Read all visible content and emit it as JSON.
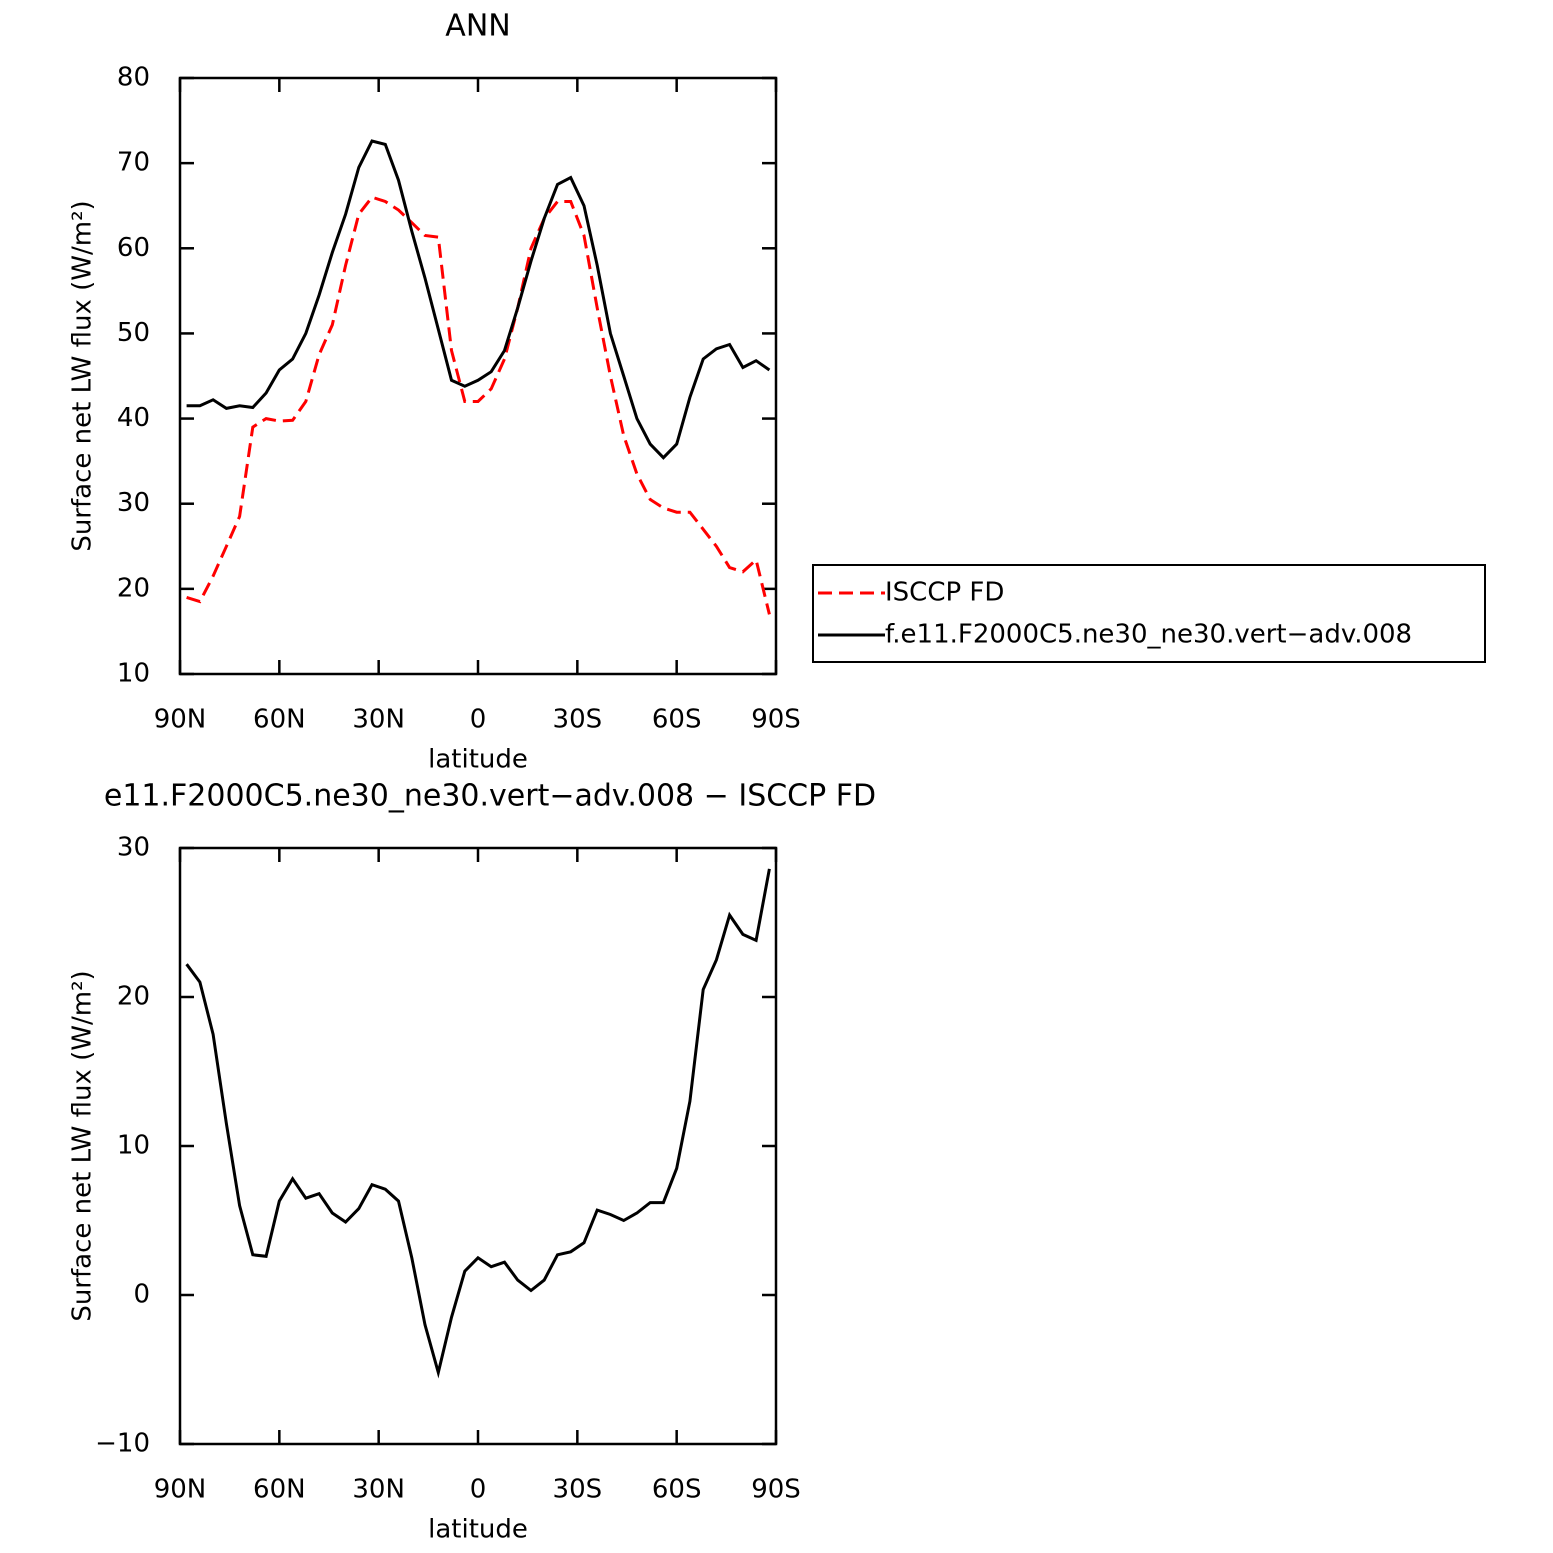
{
  "chart_data": [
    {
      "type": "line",
      "title": "ANN",
      "xlabel": "latitude",
      "ylabel": "Surface net LW flux (W/m²)",
      "x": [
        88,
        84,
        80,
        76,
        72,
        68,
        64,
        60,
        56,
        52,
        48,
        44,
        40,
        36,
        32,
        28,
        24,
        20,
        16,
        12,
        8,
        4,
        0,
        -4,
        -8,
        -12,
        -16,
        -20,
        -24,
        -28,
        -32,
        -36,
        -40,
        -44,
        -48,
        -52,
        -56,
        -60,
        -64,
        -68,
        -72,
        -76,
        -80,
        -84,
        -88
      ],
      "xlim": [
        90,
        -90
      ],
      "xticks": [
        {
          "value": 90,
          "label": "90N"
        },
        {
          "value": 60,
          "label": "60N"
        },
        {
          "value": 30,
          "label": "30N"
        },
        0,
        {
          "value": -30,
          "label": "30S"
        },
        {
          "value": -60,
          "label": "60S"
        },
        {
          "value": -90,
          "label": "90S"
        }
      ],
      "ylim": [
        10,
        80
      ],
      "yticks": [
        10,
        20,
        30,
        40,
        50,
        60,
        70,
        80
      ],
      "legend": "outside right",
      "series": [
        {
          "name": "ISCCP FD",
          "color": "#ff0000",
          "linestyle": "dashed",
          "values": [
            19,
            18.5,
            21.5,
            25,
            28.5,
            39,
            40,
            39.7,
            39.8,
            42,
            47.5,
            51,
            58,
            64,
            66,
            65.5,
            64.5,
            63,
            61.5,
            61.3,
            48,
            42,
            42,
            43.5,
            47,
            53,
            60,
            63.5,
            65.5,
            65.5,
            61.5,
            53,
            45,
            38,
            33.5,
            30.5,
            29.5,
            29,
            29,
            27,
            25,
            22.5,
            22,
            23.4,
            17
          ]
        },
        {
          "name": "f.e11.F2000C5.ne30_ne30.vert−adv.008",
          "color": "#000000",
          "linestyle": "solid",
          "values": [
            41.5,
            41.5,
            42.2,
            41.2,
            41.5,
            41.3,
            43,
            45.7,
            47,
            50,
            54.5,
            59.5,
            64,
            69.5,
            72.6,
            72.2,
            68,
            62,
            56.5,
            50.5,
            44.5,
            43.8,
            44.5,
            45.5,
            48,
            53,
            58.5,
            63.5,
            67.5,
            68.3,
            65,
            58,
            50,
            45,
            40,
            37,
            35.4,
            37,
            42.5,
            47,
            48.2,
            48.7,
            46,
            46.8,
            45.7
          ]
        }
      ]
    },
    {
      "type": "line",
      "title": "e11.F2000C5.ne30_ne30.vert−adv.008 − ISCCP FD",
      "xlabel": "latitude",
      "ylabel": "Surface net LW flux (W/m²)",
      "x": [
        88,
        84,
        80,
        76,
        72,
        68,
        64,
        60,
        56,
        52,
        48,
        44,
        40,
        36,
        32,
        28,
        24,
        20,
        16,
        12,
        8,
        4,
        0,
        -4,
        -8,
        -12,
        -16,
        -20,
        -24,
        -28,
        -32,
        -36,
        -40,
        -44,
        -48,
        -52,
        -56,
        -60,
        -64,
        -68,
        -72,
        -76,
        -80,
        -84,
        -88
      ],
      "xlim": [
        90,
        -90
      ],
      "xticks": [
        {
          "value": 90,
          "label": "90N"
        },
        {
          "value": 60,
          "label": "60N"
        },
        {
          "value": 30,
          "label": "30N"
        },
        0,
        {
          "value": -30,
          "label": "30S"
        },
        {
          "value": -60,
          "label": "60S"
        },
        {
          "value": -90,
          "label": "90S"
        }
      ],
      "ylim": [
        -10,
        30
      ],
      "yticks": [
        {
          "value": -10,
          "label": "−10"
        },
        0,
        10,
        20,
        30
      ],
      "series": [
        {
          "color": "#000000",
          "linestyle": "solid",
          "values": [
            22.2,
            21,
            17.5,
            11.5,
            6,
            2.7,
            2.6,
            6.3,
            7.8,
            6.5,
            6.8,
            5.5,
            4.9,
            5.8,
            7.4,
            7.1,
            6.3,
            2.5,
            -2,
            -5.2,
            -1.5,
            1.6,
            2.5,
            1.9,
            2.2,
            1,
            0.3,
            1,
            2.7,
            2.9,
            3.5,
            5.7,
            5.4,
            5,
            5.5,
            6.2,
            6.2,
            8.5,
            13,
            20.5,
            22.5,
            25.5,
            24.2,
            23.8,
            28.6
          ]
        }
      ]
    }
  ]
}
